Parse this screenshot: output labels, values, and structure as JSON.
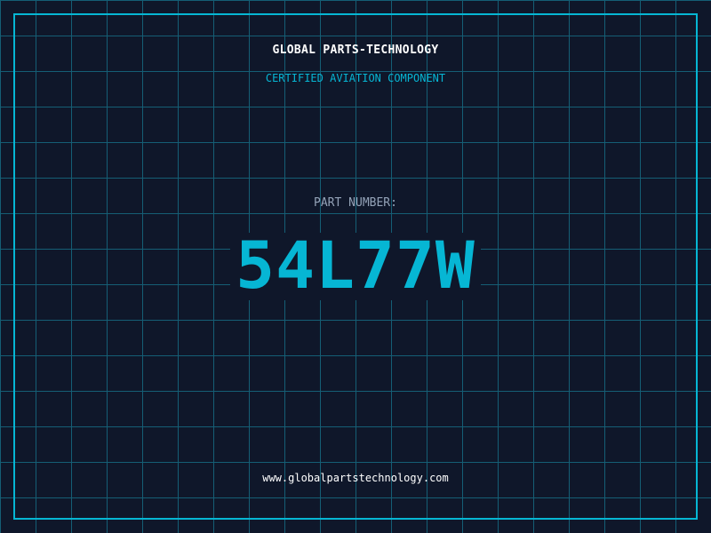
{
  "header": {
    "company": "GLOBAL PARTS-TECHNOLOGY",
    "subtitle": "CERTIFIED AVIATION COMPONENT"
  },
  "part": {
    "label": "PART NUMBER:",
    "number": "54L77W"
  },
  "footer": {
    "url": "www.globalpartstechnology.com"
  },
  "colors": {
    "background": "#0f172a",
    "accent": "#06b6d4",
    "grid": "#155e75"
  }
}
